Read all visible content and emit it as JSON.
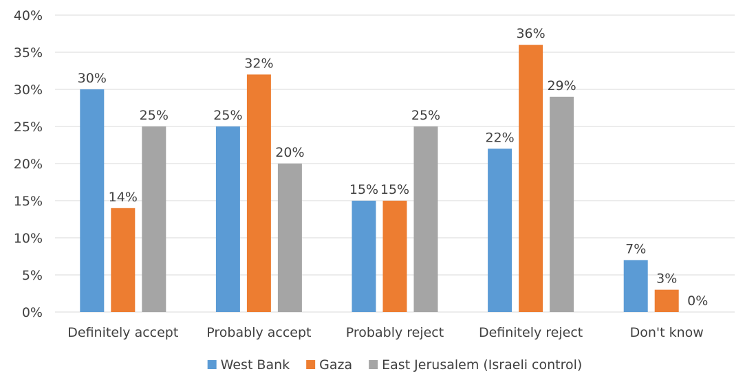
{
  "chart_data": {
    "type": "bar",
    "title": "",
    "xlabel": "",
    "ylabel": "",
    "ylim": [
      0,
      40
    ],
    "yticks": [
      "0%",
      "5%",
      "10%",
      "15%",
      "20%",
      "25%",
      "30%",
      "35%",
      "40%"
    ],
    "grid": true,
    "legend_position": "bottom",
    "categories": [
      "Definitely accept",
      "Probably accept",
      "Probably reject",
      "Definitely reject",
      "Don't know"
    ],
    "series": [
      {
        "name": "West Bank",
        "color": "#5b9bd5",
        "values": [
          30,
          25,
          15,
          22,
          7
        ],
        "labels": [
          "30%",
          "25%",
          "15%",
          "22%",
          "7%"
        ]
      },
      {
        "name": "Gaza",
        "color": "#ed7d31",
        "values": [
          14,
          32,
          15,
          36,
          3
        ],
        "labels": [
          "14%",
          "32%",
          "15%",
          "36%",
          "3%"
        ]
      },
      {
        "name": "East Jerusalem (Israeli control)",
        "color": "#a5a5a5",
        "values": [
          25,
          20,
          25,
          29,
          0
        ],
        "labels": [
          "25%",
          "20%",
          "25%",
          "29%",
          "0%"
        ]
      }
    ]
  }
}
